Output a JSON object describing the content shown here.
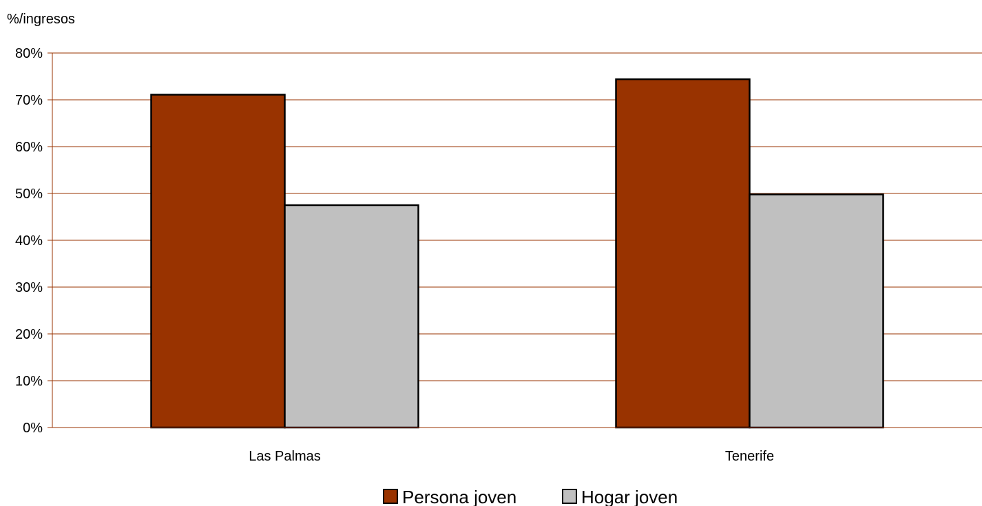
{
  "chart_data": {
    "type": "bar",
    "title": "",
    "xlabel": "",
    "ylabel": "%/ingresos",
    "categories": [
      "Las Palmas",
      "Tenerife"
    ],
    "series": [
      {
        "name": "Persona joven",
        "values": [
          71.1,
          74.4
        ],
        "color": "#993300"
      },
      {
        "name": "Hogar joven",
        "values": [
          47.5,
          49.8
        ],
        "color": "#c0c0c0"
      }
    ],
    "ylim": [
      0,
      80
    ],
    "yticks": [
      "0%",
      "10%",
      "20%",
      "30%",
      "40%",
      "50%",
      "60%",
      "70%",
      "80%"
    ],
    "grid": true,
    "grid_color": "#993300",
    "legend_position": "bottom"
  }
}
